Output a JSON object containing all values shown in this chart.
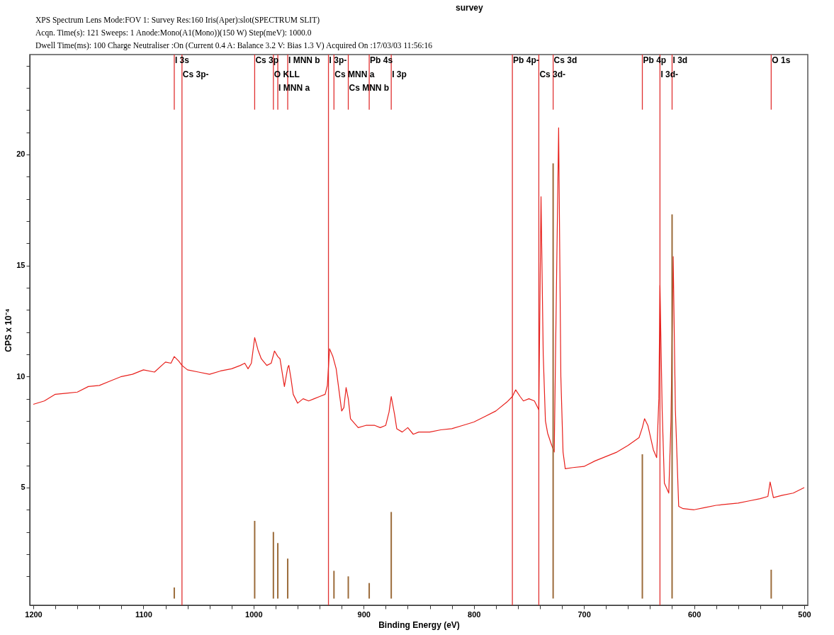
{
  "chart_data": {
    "type": "line",
    "title": "survey",
    "xlabel": "Binding Energy (eV)",
    "ylabel": "CPS x 10⁻⁴",
    "annotations": [
      "XPS Spectrum Lens Mode:FOV 1: Survey Res:160 Iris(Aper):slot(SPECTRUM SLIT)",
      "Acqn. Time(s): 121 Sweeps: 1 Anode:Mono(A1(Mono))(150 W) Step(meV): 1000.0",
      "Dwell Time(ms): 100 Charge Neutraliser :On (Current 0.4 A: Balance 3.2 V: Bias 1.3 V) Acquired On :17/03/03 11:56:16"
    ],
    "ref_lines": [
      {
        "axis": "x",
        "value": 1072,
        "label": "I 3s",
        "color": "#e03030"
      },
      {
        "axis": "x",
        "value": 1065,
        "label": "Cs 3p-",
        "color": "#e03030"
      },
      {
        "axis": "x",
        "value": 999,
        "label": "Cs 3p",
        "color": "#e03030"
      },
      {
        "axis": "x",
        "value": 982,
        "label": "O KLL",
        "color": "#e03030"
      },
      {
        "axis": "x",
        "value": 978,
        "label": "I MNN a",
        "color": "#e03030"
      },
      {
        "axis": "x",
        "value": 969,
        "label": "I MNN b",
        "color": "#e03030"
      },
      {
        "axis": "x",
        "value": 932,
        "label": "I 3p-",
        "color": "#e03030"
      },
      {
        "axis": "x",
        "value": 927,
        "label": "Cs MNN a",
        "color": "#e03030"
      },
      {
        "axis": "x",
        "value": 914,
        "label": "Cs MNN b",
        "color": "#e03030"
      },
      {
        "axis": "x",
        "value": 895,
        "label": "Pb 4s",
        "color": "#e03030"
      },
      {
        "axis": "x",
        "value": 875,
        "label": "I 3p",
        "color": "#e03030"
      },
      {
        "axis": "x",
        "value": 765,
        "label": "Pb 4p-",
        "color": "#e03030"
      },
      {
        "axis": "x",
        "value": 741,
        "label": "Cs 3d-",
        "color": "#e03030"
      },
      {
        "axis": "x",
        "value": 728,
        "label": "Cs 3d",
        "color": "#e03030"
      },
      {
        "axis": "x",
        "value": 647,
        "label": "Pb 4p",
        "color": "#e03030"
      },
      {
        "axis": "x",
        "value": 631,
        "label": "I 3d-",
        "color": "#e03030"
      },
      {
        "axis": "x",
        "value": 620,
        "label": "I 3d",
        "color": "#e03030"
      },
      {
        "axis": "x",
        "value": 530,
        "label": "O 1s",
        "color": "#e03030"
      }
    ],
    "series": [
      {
        "color": "#e8201c",
        "x": [
          1200,
          1190,
          1180,
          1170,
          1160,
          1150,
          1140,
          1130,
          1120,
          1110,
          1100,
          1090,
          1080,
          1075,
          1072,
          1068,
          1065,
          1060,
          1050,
          1040,
          1030,
          1020,
          1012,
          1008,
          1005,
          1002,
          999,
          996,
          993,
          988,
          984,
          981,
          978,
          976,
          972,
          969,
          968,
          966,
          964,
          960,
          955,
          950,
          945,
          940,
          935,
          933,
          931,
          928,
          925,
          920,
          918,
          916,
          914,
          912,
          905,
          898,
          890,
          885,
          880,
          877,
          875,
          872,
          870,
          865,
          860,
          855,
          850,
          840,
          830,
          820,
          810,
          800,
          790,
          780,
          770,
          765,
          762,
          758,
          755,
          750,
          745,
          741,
          739,
          737,
          735,
          733,
          730,
          727,
          725,
          723,
          721,
          719,
          717,
          710,
          700,
          690,
          680,
          670,
          660,
          650,
          647,
          645,
          642,
          637,
          634,
          632,
          631,
          629,
          627,
          623,
          621,
          619,
          617,
          614,
          610,
          600,
          590,
          580,
          570,
          560,
          550,
          540,
          533,
          531,
          528,
          520,
          510,
          500
        ],
        "values": [
          8.75,
          8.9,
          9.2,
          9.25,
          9.3,
          9.55,
          9.6,
          9.8,
          10.0,
          10.1,
          10.3,
          10.2,
          10.65,
          10.6,
          10.9,
          10.7,
          10.5,
          10.3,
          10.2,
          10.1,
          10.25,
          10.35,
          10.5,
          10.6,
          10.35,
          10.6,
          11.75,
          11.2,
          10.8,
          10.5,
          10.6,
          11.15,
          10.9,
          10.8,
          9.55,
          10.4,
          10.5,
          9.9,
          9.2,
          8.8,
          9.0,
          8.9,
          9.0,
          9.1,
          9.2,
          9.6,
          11.25,
          10.9,
          10.35,
          8.45,
          8.6,
          9.5,
          9.0,
          8.1,
          7.7,
          7.8,
          7.8,
          7.7,
          7.8,
          8.4,
          9.1,
          8.3,
          7.65,
          7.5,
          7.7,
          7.4,
          7.5,
          7.5,
          7.6,
          7.65,
          7.8,
          7.95,
          8.2,
          8.45,
          8.85,
          9.1,
          9.4,
          9.1,
          8.9,
          9.0,
          8.9,
          8.5,
          18.1,
          11.0,
          8.0,
          7.45,
          7.0,
          6.6,
          14.0,
          21.2,
          10.0,
          6.6,
          5.85,
          5.9,
          5.95,
          6.2,
          6.4,
          6.6,
          6.9,
          7.25,
          7.7,
          8.1,
          7.8,
          6.7,
          6.35,
          9.0,
          14.1,
          8.5,
          5.2,
          4.75,
          8.0,
          15.4,
          8.5,
          4.15,
          4.05,
          4.0,
          4.1,
          4.2,
          4.25,
          4.3,
          4.4,
          4.5,
          4.6,
          5.25,
          4.55,
          4.65,
          4.75,
          5.0
        ]
      },
      {
        "type": "bar",
        "color": "#9b6b3a",
        "x": [
          1072,
          999,
          982,
          978,
          969,
          927,
          914,
          895,
          875,
          728,
          647,
          620,
          530
        ],
        "values": [
          0.5,
          3.5,
          3.0,
          2.5,
          1.8,
          1.25,
          1.0,
          0.7,
          3.9,
          19.6,
          6.5,
          17.3,
          1.3
        ]
      }
    ],
    "xlim": [
      1200,
      500
    ],
    "ylim": [
      -0.3,
      24.5
    ],
    "xticks": [
      1200,
      {
        "value": 1180,
        "label": null
      },
      {
        "value": 1160,
        "label": null
      },
      {
        "value": 1140,
        "label": null
      },
      {
        "value": 1120,
        "label": null
      },
      1100,
      {
        "value": 1080,
        "label": null
      },
      {
        "value": 1060,
        "label": null
      },
      {
        "value": 1040,
        "label": null
      },
      {
        "value": 1020,
        "label": null
      },
      1000,
      {
        "value": 980,
        "label": null
      },
      {
        "value": 960,
        "label": null
      },
      {
        "value": 940,
        "label": null
      },
      {
        "value": 920,
        "label": null
      },
      900,
      {
        "value": 880,
        "label": null
      },
      {
        "value": 860,
        "label": null
      },
      {
        "value": 840,
        "label": null
      },
      {
        "value": 820,
        "label": null
      },
      800,
      {
        "value": 780,
        "label": null
      },
      {
        "value": 760,
        "label": null
      },
      {
        "value": 740,
        "label": null
      },
      {
        "value": 720,
        "label": null
      },
      700,
      {
        "value": 680,
        "label": null
      },
      {
        "value": 660,
        "label": null
      },
      {
        "value": 640,
        "label": null
      },
      {
        "value": 620,
        "label": null
      },
      600,
      {
        "value": 580,
        "label": null
      },
      {
        "value": 560,
        "label": null
      },
      {
        "value": 540,
        "label": null
      },
      {
        "value": 520,
        "label": null
      },
      500
    ],
    "yticks": [
      {
        "value": 1,
        "label": null
      },
      {
        "value": 2,
        "label": null
      },
      {
        "value": 3,
        "label": null
      },
      {
        "value": 4,
        "label": null
      },
      5,
      {
        "value": 6,
        "label": null
      },
      {
        "value": 7,
        "label": null
      },
      {
        "value": 8,
        "label": null
      },
      {
        "value": 9,
        "label": null
      },
      10,
      {
        "value": 11,
        "label": null
      },
      {
        "value": 12,
        "label": null
      },
      {
        "value": 13,
        "label": null
      },
      {
        "value": 14,
        "label": null
      },
      15,
      {
        "value": 16,
        "label": null
      },
      {
        "value": 17,
        "label": null
      },
      {
        "value": 18,
        "label": null
      },
      {
        "value": 19,
        "label": null
      },
      20,
      {
        "value": 21,
        "label": null
      },
      {
        "value": 22,
        "label": null
      },
      {
        "value": 23,
        "label": null
      },
      {
        "value": 24,
        "label": null
      }
    ],
    "grid": false
  }
}
